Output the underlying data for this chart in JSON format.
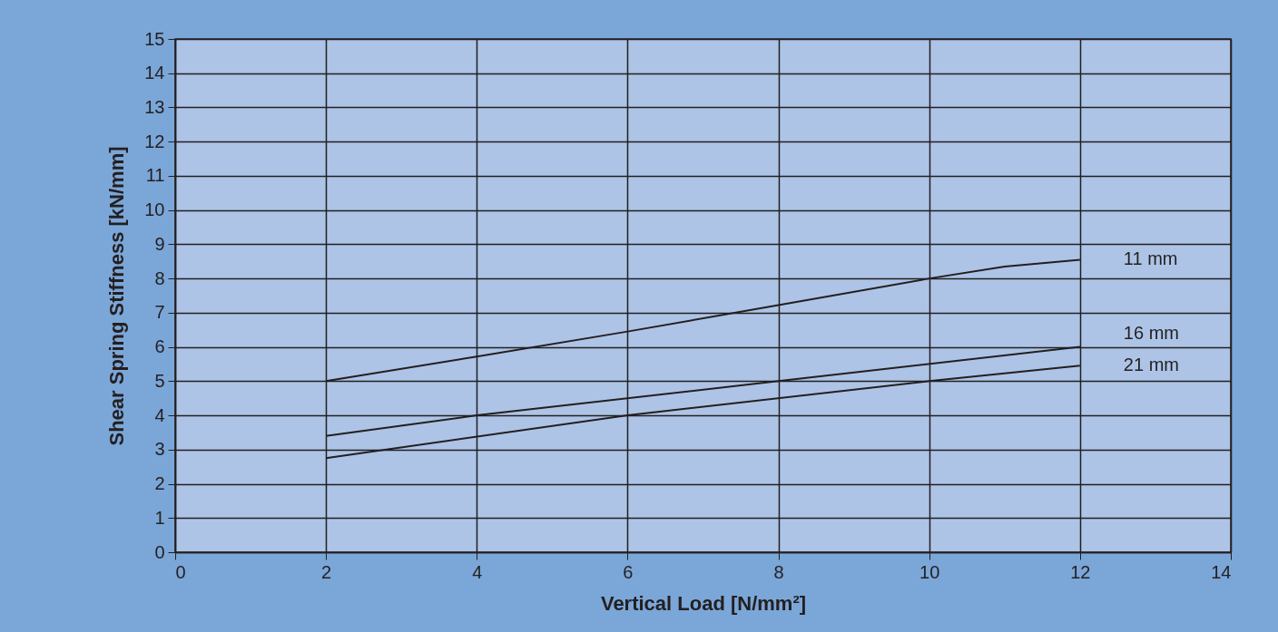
{
  "chart_data": {
    "type": "line",
    "xlabel": "Vertical Load [N/mm²]",
    "ylabel": "Shear Spring Stiffness [kN/mm]",
    "xlim": [
      0,
      14
    ],
    "xticks": [
      0,
      2,
      4,
      6,
      8,
      10,
      12,
      14
    ],
    "ylim": [
      0,
      15
    ],
    "yticks": [
      0,
      1,
      2,
      3,
      4,
      5,
      6,
      7,
      8,
      9,
      10,
      11,
      12,
      13,
      14,
      15
    ],
    "grid": true,
    "legend": false,
    "marker": "none",
    "line_style": "solid",
    "series": [
      {
        "name": "11 mm",
        "color": "#231f20",
        "x": [
          2,
          4,
          6,
          8,
          10,
          11,
          12
        ],
        "values": [
          5.0,
          5.72,
          6.45,
          7.22,
          8.0,
          8.35,
          8.55
        ]
      },
      {
        "name": "16 mm",
        "color": "#231f20",
        "x": [
          2,
          4,
          8,
          12
        ],
        "values": [
          3.4,
          4.0,
          5.0,
          6.0
        ]
      },
      {
        "name": "21 mm",
        "color": "#231f20",
        "x": [
          2,
          6,
          10,
          12
        ],
        "values": [
          2.75,
          4.0,
          5.0,
          5.45
        ]
      }
    ]
  }
}
